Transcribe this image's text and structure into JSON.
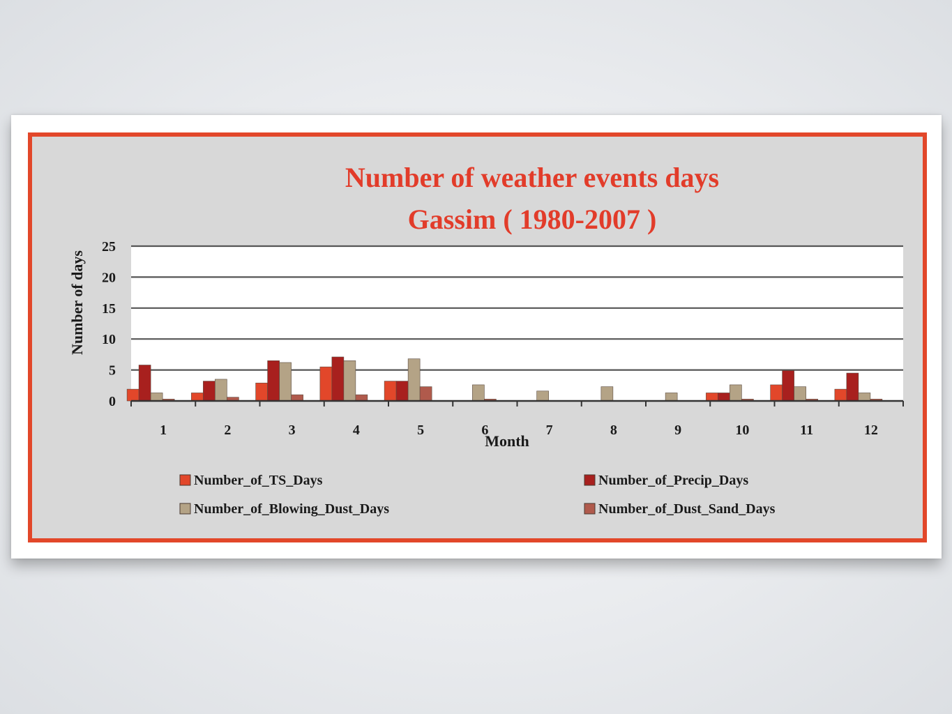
{
  "chart_data": {
    "type": "bar",
    "title": [
      "Number of weather events days",
      "Gassim ( 1980-2007 )"
    ],
    "xlabel": "Month",
    "ylabel": "Number of days",
    "categories": [
      "1",
      "2",
      "3",
      "4",
      "5",
      "6",
      "7",
      "8",
      "9",
      "10",
      "11",
      "12"
    ],
    "ylim": [
      0,
      25
    ],
    "yticks": [
      0,
      5,
      10,
      15,
      20,
      25
    ],
    "grid": true,
    "legend_position": "bottom",
    "series": [
      {
        "name": "Number_of_TS_Days",
        "color": "#e2472a",
        "values": [
          1.9,
          1.3,
          2.9,
          5.5,
          3.2,
          0,
          0,
          0,
          0,
          1.3,
          2.6,
          1.9
        ]
      },
      {
        "name": "Number_of_Precip_Days",
        "color": "#a8201e",
        "values": [
          5.8,
          3.2,
          6.5,
          7.1,
          3.2,
          0,
          0,
          0,
          0,
          1.3,
          4.9,
          4.5
        ]
      },
      {
        "name": "Number_of_Blowing_Dust_Days",
        "color": "#b4a386",
        "values": [
          1.3,
          3.5,
          6.2,
          6.5,
          6.8,
          2.6,
          1.6,
          2.3,
          1.3,
          2.6,
          2.3,
          1.3
        ]
      },
      {
        "name": "Number_of_Dust_Sand_Days",
        "color": "#b05a4c",
        "values": [
          0.3,
          0.6,
          1.0,
          1.0,
          2.3,
          0.3,
          0,
          0,
          0,
          0.3,
          0.3,
          0.3
        ]
      }
    ]
  }
}
